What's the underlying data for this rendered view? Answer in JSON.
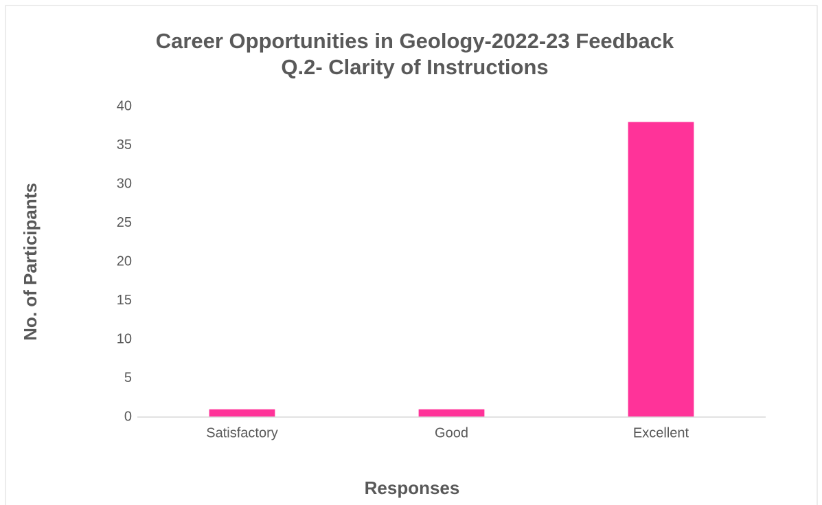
{
  "chart_data": {
    "type": "bar",
    "title": [
      "Career Opportunities in Geology-2022-23 Feedback",
      "Q.2- Clarity of Instructions"
    ],
    "x_label": "Responses",
    "y_label": "No. of Participants",
    "categories": [
      "Satisfactory",
      "Good",
      "Excellent"
    ],
    "values": [
      1,
      1,
      38
    ],
    "color": "#ff3399",
    "ylim": [
      0,
      40
    ],
    "yticks": [
      0,
      5,
      10,
      15,
      20,
      25,
      30,
      35,
      40
    ],
    "grid": false
  }
}
